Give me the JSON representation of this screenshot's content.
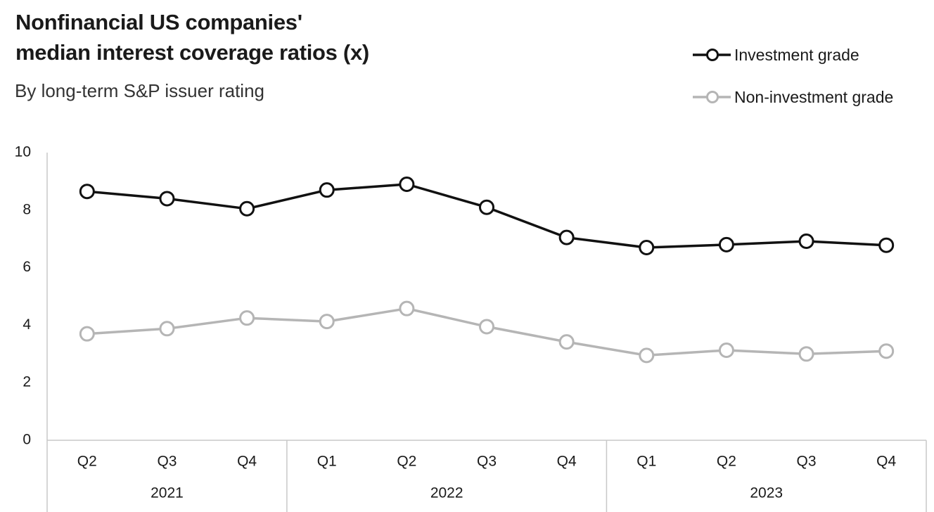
{
  "chart_data": {
    "type": "line",
    "title_lines": [
      "Nonfinancial US companies'",
      "median interest coverage ratios (x)"
    ],
    "subtitle": "By long-term S&P issuer rating",
    "categories": [
      "Q2",
      "Q3",
      "Q4",
      "Q1",
      "Q2",
      "Q3",
      "Q4",
      "Q1",
      "Q2",
      "Q3",
      "Q4"
    ],
    "year_groups": [
      {
        "label": "2021",
        "count": 3
      },
      {
        "label": "2022",
        "count": 4
      },
      {
        "label": "2023",
        "count": 4
      }
    ],
    "series": [
      {
        "name": "Investment grade",
        "color": "#111111",
        "values": [
          8.65,
          8.4,
          8.05,
          8.7,
          8.9,
          8.1,
          7.05,
          6.7,
          6.8,
          6.92,
          6.78
        ]
      },
      {
        "name": "Non-investment grade",
        "color": "#b5b5b5",
        "values": [
          3.7,
          3.88,
          4.25,
          4.13,
          4.58,
          3.95,
          3.42,
          2.95,
          3.13,
          3.0,
          3.1
        ]
      }
    ],
    "ylim": [
      0,
      10
    ],
    "yticks": [
      "0",
      "2",
      "4",
      "6",
      "8",
      "10"
    ],
    "xlabel": "",
    "ylabel": "",
    "legend_position": "top-right",
    "grid": false
  }
}
